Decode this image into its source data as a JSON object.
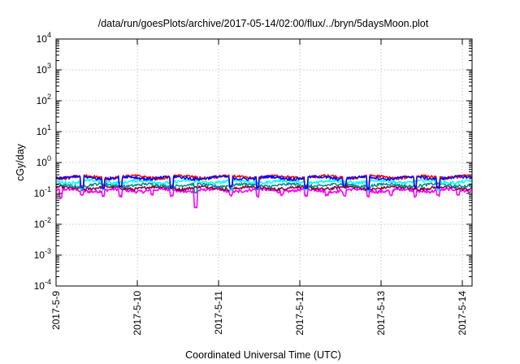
{
  "chart_data": {
    "type": "line",
    "title": "/data/run/goesPlots/archive/2017-05-14/02:00/flux/../bryn/5daysMoon.plot",
    "xlabel": "Coordinated Universal Time (UTC)",
    "ylabel": "cGy/day",
    "y_scale": "log",
    "ylim_exp": [
      -4,
      4
    ],
    "y_tick_exponents": [
      -4,
      -3,
      -2,
      -1,
      0,
      1,
      2,
      3,
      4
    ],
    "xlim_days": [
      0,
      5.12
    ],
    "x_ticks": [
      {
        "day": 0,
        "label": "2017-5-9"
      },
      {
        "day": 1,
        "label": "2017-5-10"
      },
      {
        "day": 2,
        "label": "2017-5-11"
      },
      {
        "day": 3,
        "label": "2017-5-12"
      },
      {
        "day": 4,
        "label": "2017-5-13"
      },
      {
        "day": 5,
        "label": "2017-5-14"
      }
    ],
    "grid": true,
    "series": [
      {
        "color": "#ff00ff",
        "base": 0.125,
        "dips": [
          [
            0.06,
            0.07
          ],
          [
            0.32,
            0.09
          ],
          [
            0.58,
            0.08
          ],
          [
            0.79,
            0.08
          ],
          [
            1.18,
            0.09
          ],
          [
            1.42,
            0.085
          ],
          [
            1.72,
            0.035
          ],
          [
            2.15,
            0.085
          ],
          [
            2.48,
            0.08
          ],
          [
            2.78,
            0.09
          ],
          [
            3.08,
            0.085
          ],
          [
            3.33,
            0.09
          ],
          [
            3.55,
            0.085
          ],
          [
            3.84,
            0.075
          ],
          [
            4.12,
            0.09
          ],
          [
            4.42,
            0.08
          ],
          [
            4.7,
            0.085
          ],
          [
            4.95,
            0.09
          ]
        ]
      },
      {
        "color": "#800040",
        "base": 0.15,
        "dips": []
      },
      {
        "color": "#008b8b",
        "base": 0.185,
        "dips": [
          [
            0.32,
            0.13
          ],
          [
            1.72,
            0.11
          ],
          [
            2.48,
            0.13
          ],
          [
            3.84,
            0.12
          ]
        ]
      },
      {
        "color": "#00ffff",
        "base": 0.24,
        "dips": [
          [
            0.32,
            0.14
          ],
          [
            0.58,
            0.13
          ],
          [
            1.42,
            0.14
          ],
          [
            2.15,
            0.13
          ],
          [
            3.08,
            0.13
          ],
          [
            3.84,
            0.12
          ],
          [
            4.7,
            0.13
          ]
        ]
      },
      {
        "color": "#ff0000",
        "base": 0.34,
        "dips": [
          [
            0.32,
            0.17
          ],
          [
            0.58,
            0.16
          ],
          [
            0.79,
            0.17
          ],
          [
            1.42,
            0.16
          ],
          [
            2.15,
            0.17
          ],
          [
            2.48,
            0.16
          ],
          [
            3.08,
            0.16
          ],
          [
            3.55,
            0.17
          ],
          [
            3.84,
            0.15
          ],
          [
            4.42,
            0.17
          ],
          [
            4.7,
            0.16
          ]
        ]
      },
      {
        "color": "#0000ff",
        "base": 0.32,
        "dips": [
          [
            0.32,
            0.16
          ],
          [
            0.58,
            0.15
          ],
          [
            0.79,
            0.16
          ],
          [
            1.42,
            0.15
          ],
          [
            2.15,
            0.16
          ],
          [
            2.48,
            0.15
          ],
          [
            3.08,
            0.15
          ],
          [
            3.55,
            0.16
          ],
          [
            3.84,
            0.14
          ],
          [
            4.42,
            0.16
          ],
          [
            4.7,
            0.15
          ]
        ]
      }
    ]
  }
}
